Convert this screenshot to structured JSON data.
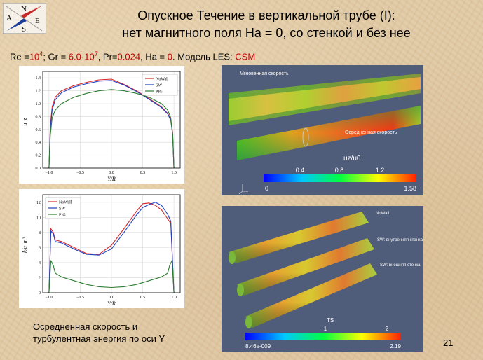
{
  "logo": {
    "n": "N",
    "a": "A",
    "s": "S",
    "e": "E"
  },
  "title": {
    "line1": "Опускное Течение в вертикальной трубе (I):",
    "line2": "нет магнитного поля Ha = 0, со стенкой и без нее"
  },
  "params": {
    "re_label": "Re =",
    "re_base": "10",
    "re_exp": "4",
    "gr_label": "; Gr = ",
    "gr_value": "6.0",
    "gr_dot": "·",
    "gr_base": "10",
    "gr_exp": "7",
    "pr_label": ", Pr=",
    "pr_value": "0.024",
    "ha_label": ", Ha = ",
    "ha_value": "0",
    "model_label": ". Модель LES: ",
    "model_value": "CSM"
  },
  "plot1": {
    "ylabel": "u_z",
    "xlabel": "Y/R",
    "yticks": [
      "0.0",
      "0.2",
      "0.4",
      "0.6",
      "0.8",
      "1.0",
      "1.2",
      "1.4"
    ],
    "xticks": [
      "−1.0",
      "−0.5",
      "0.0",
      "0.5",
      "1.0"
    ],
    "legend": [
      "NoWall",
      "SW",
      "PIG"
    ]
  },
  "plot2": {
    "ylabel": "k/u_m²",
    "xlabel": "Y/R",
    "yticks": [
      "0",
      "2",
      "4",
      "6",
      "8",
      "10",
      "12"
    ],
    "xticks": [
      "−1.0",
      "−0.5",
      "0.0",
      "0.5",
      "1.0"
    ],
    "legend": [
      "NoWall",
      "SW",
      "PIG"
    ]
  },
  "render1": {
    "label_instant": "Мгновенная скорость",
    "label_mean": "Осредненная скорость",
    "colorbar_title": "uz/u0",
    "colorbar_mid_ticks": [
      "0.4",
      "0.8",
      "1.2"
    ],
    "colorbar_min": "0",
    "colorbar_max": "1.58"
  },
  "render2": {
    "label_nowall": "NoWall",
    "label_sw_inner": "SW: внутренняя стенка",
    "label_sw_outer": "SW: внешняя стенка",
    "colorbar_title": "TS",
    "colorbar_mid_ticks": [
      "1",
      "2"
    ],
    "colorbar_min": "8.46e-009",
    "colorbar_max": "2.19"
  },
  "caption": {
    "line1": "Осредненная скорость и",
    "line2": "турбулентная энергия по оси Y"
  },
  "page_number": "21",
  "colors": {
    "nowall": "#d62728",
    "sw": "#1f3fbf",
    "pig": "#2e7d32",
    "title_red": "#c00000",
    "render_bg": "#4f5c7a"
  },
  "chart_data": [
    {
      "type": "line",
      "title": "",
      "xlabel": "Y/R",
      "ylabel": "u_z",
      "xlim": [
        -1.1,
        1.1
      ],
      "ylim": [
        0,
        1.5
      ],
      "grid": true,
      "legend_position": "top-right",
      "series": [
        {
          "name": "NoWall",
          "x": [
            -1.0,
            -0.98,
            -0.95,
            -0.9,
            -0.8,
            -0.6,
            -0.4,
            -0.2,
            0.0,
            0.2,
            0.4,
            0.6,
            0.8,
            0.9,
            0.95,
            0.98,
            1.0
          ],
          "y": [
            0.0,
            0.65,
            0.95,
            1.1,
            1.2,
            1.28,
            1.33,
            1.37,
            1.38,
            1.3,
            1.2,
            1.08,
            0.95,
            0.85,
            0.75,
            0.55,
            0.0
          ]
        },
        {
          "name": "SW",
          "x": [
            -1.0,
            -0.98,
            -0.95,
            -0.9,
            -0.8,
            -0.6,
            -0.4,
            -0.2,
            0.0,
            0.2,
            0.4,
            0.6,
            0.8,
            0.9,
            0.95,
            0.98,
            1.0
          ],
          "y": [
            0.0,
            0.6,
            0.9,
            1.06,
            1.17,
            1.26,
            1.31,
            1.35,
            1.36,
            1.29,
            1.19,
            1.07,
            0.94,
            0.84,
            0.74,
            0.52,
            0.0
          ]
        },
        {
          "name": "PIG",
          "x": [
            -1.0,
            -0.98,
            -0.95,
            -0.9,
            -0.8,
            -0.6,
            -0.4,
            -0.2,
            0.0,
            0.2,
            0.4,
            0.6,
            0.8,
            0.9,
            0.95,
            0.98,
            1.0
          ],
          "y": [
            0.0,
            0.5,
            0.78,
            0.9,
            1.0,
            1.1,
            1.16,
            1.2,
            1.22,
            1.2,
            1.16,
            1.1,
            1.0,
            0.9,
            0.78,
            0.5,
            0.0
          ]
        }
      ]
    },
    {
      "type": "line",
      "title": "",
      "xlabel": "Y/R",
      "ylabel": "k/u_m²",
      "xlim": [
        -1.1,
        1.1
      ],
      "ylim": [
        0,
        13
      ],
      "grid": true,
      "legend_position": "top-left",
      "series": [
        {
          "name": "NoWall",
          "x": [
            -1.0,
            -0.97,
            -0.93,
            -0.9,
            -0.8,
            -0.6,
            -0.4,
            -0.2,
            0.0,
            0.2,
            0.4,
            0.5,
            0.6,
            0.7,
            0.8,
            0.9,
            0.95,
            1.0
          ],
          "y": [
            0.0,
            8.5,
            8.0,
            7.0,
            6.8,
            6.0,
            5.2,
            5.1,
            6.3,
            8.5,
            10.8,
            11.8,
            11.9,
            11.6,
            11.0,
            9.8,
            9.2,
            0.0
          ]
        },
        {
          "name": "SW",
          "x": [
            -1.0,
            -0.97,
            -0.93,
            -0.9,
            -0.8,
            -0.6,
            -0.4,
            -0.2,
            0.0,
            0.2,
            0.4,
            0.5,
            0.6,
            0.7,
            0.8,
            0.9,
            0.95,
            1.0
          ],
          "y": [
            0.0,
            8.2,
            7.8,
            6.8,
            6.6,
            5.8,
            5.1,
            5.0,
            5.8,
            8.0,
            10.3,
            11.3,
            11.7,
            12.0,
            11.6,
            10.4,
            9.5,
            0.0
          ]
        },
        {
          "name": "PIG",
          "x": [
            -1.0,
            -0.97,
            -0.93,
            -0.9,
            -0.8,
            -0.6,
            -0.4,
            -0.2,
            0.0,
            0.2,
            0.4,
            0.6,
            0.8,
            0.9,
            0.93,
            0.97,
            1.0
          ],
          "y": [
            0.0,
            4.3,
            3.6,
            2.6,
            2.1,
            1.6,
            1.1,
            0.8,
            0.7,
            0.8,
            1.1,
            1.6,
            2.1,
            2.6,
            3.6,
            4.3,
            0.0
          ]
        }
      ]
    }
  ]
}
